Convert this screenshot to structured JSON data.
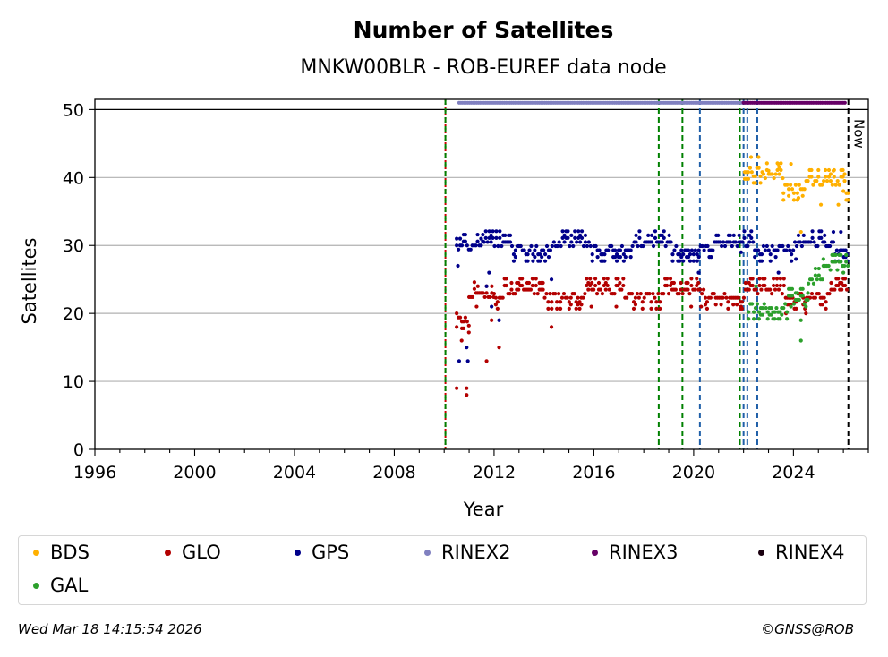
{
  "chart_data": {
    "type": "scatter",
    "title": "Number of Satellites",
    "subtitle": "MNKW00BLR - ROB-EUREF data node",
    "xlabel": "Year",
    "ylabel": "Satellites",
    "xlim": [
      1996,
      2027
    ],
    "ylim": [
      0,
      51.5
    ],
    "x_ticks": [
      "1996",
      "2000",
      "2004",
      "2008",
      "2012",
      "2016",
      "2020",
      "2024"
    ],
    "x_tick_values": [
      1996,
      2000,
      2004,
      2008,
      2012,
      2016,
      2020,
      2024
    ],
    "y_ticks": [
      "0",
      "10",
      "20",
      "30",
      "40",
      "50"
    ],
    "y_tick_values": [
      0,
      10,
      20,
      30,
      40,
      50
    ],
    "grid": "horizontal",
    "now_label": "Now",
    "now_year": 2026.2,
    "vlines": [
      {
        "x": 2010.05,
        "color": "#cc0000",
        "style": "dotted"
      },
      {
        "x": 2010.05,
        "color": "#008000",
        "style": "dashed"
      },
      {
        "x": 2018.6,
        "color": "#008000",
        "style": "dashed"
      },
      {
        "x": 2019.55,
        "color": "#008000",
        "style": "dashed"
      },
      {
        "x": 2020.25,
        "color": "#1f5fa8",
        "style": "dashed"
      },
      {
        "x": 2021.85,
        "color": "#008000",
        "style": "dashed"
      },
      {
        "x": 2022.0,
        "color": "#1f5fa8",
        "style": "dashed"
      },
      {
        "x": 2022.15,
        "color": "#1f5fa8",
        "style": "dashed"
      },
      {
        "x": 2022.55,
        "color": "#1f5fa8",
        "style": "dashed"
      },
      {
        "x": 2026.2,
        "color": "#000000",
        "style": "dashed"
      }
    ],
    "series": [
      {
        "name": "BDS",
        "color": "#ffb000",
        "segments": [
          {
            "x": [
              2022.05,
              2022.8
            ],
            "y": 42
          },
          {
            "x": [
              2022.8,
              2023.6
            ],
            "y": 40.5
          },
          {
            "x": [
              2023.6,
              2026.2
            ],
            "y": 39.5
          }
        ],
        "points": [
          {
            "x": 2022.3,
            "y": 43
          },
          {
            "x": 2022.6,
            "y": 43
          },
          {
            "x": 2023.0,
            "y": 41
          },
          {
            "x": 2023.4,
            "y": 42
          },
          {
            "x": 2023.9,
            "y": 42
          },
          {
            "x": 2024.2,
            "y": 37
          },
          {
            "x": 2024.3,
            "y": 32
          },
          {
            "x": 2025.1,
            "y": 36
          },
          {
            "x": 2025.6,
            "y": 41
          },
          {
            "x": 2025.8,
            "y": 36
          },
          {
            "x": 2026.0,
            "y": 38
          }
        ]
      },
      {
        "name": "GLO",
        "color": "#b30000",
        "segments": [
          {
            "x": [
              2010.5,
              2011.0
            ],
            "y": 20
          },
          {
            "x": [
              2011.0,
              2012.0
            ],
            "y": 23
          },
          {
            "x": [
              2012.0,
              2026.2
            ],
            "y": 23.5
          }
        ],
        "points": [
          {
            "x": 2010.5,
            "y": 9
          },
          {
            "x": 2010.5,
            "y": 18
          },
          {
            "x": 2010.7,
            "y": 16
          },
          {
            "x": 2010.9,
            "y": 8
          },
          {
            "x": 2010.9,
            "y": 9
          },
          {
            "x": 2011.3,
            "y": 21
          },
          {
            "x": 2011.7,
            "y": 13
          },
          {
            "x": 2011.9,
            "y": 19
          },
          {
            "x": 2012.2,
            "y": 15
          },
          {
            "x": 2014.3,
            "y": 18
          },
          {
            "x": 2015.9,
            "y": 21
          },
          {
            "x": 2016.9,
            "y": 21
          },
          {
            "x": 2019.9,
            "y": 21
          },
          {
            "x": 2020.3,
            "y": 21
          },
          {
            "x": 2021.9,
            "y": 21
          },
          {
            "x": 2023.7,
            "y": 20
          },
          {
            "x": 2024.5,
            "y": 20
          }
        ]
      },
      {
        "name": "GPS",
        "color": "#00008b",
        "segments": [
          {
            "x": [
              2010.5,
              2011.6
            ],
            "y": 30
          },
          {
            "x": [
              2011.6,
              2026.2
            ],
            "y": 30.5
          }
        ],
        "points": [
          {
            "x": 2010.55,
            "y": 27
          },
          {
            "x": 2010.6,
            "y": 13
          },
          {
            "x": 2010.9,
            "y": 15
          },
          {
            "x": 2010.95,
            "y": 13
          },
          {
            "x": 2011.7,
            "y": 24
          },
          {
            "x": 2011.8,
            "y": 26
          },
          {
            "x": 2011.9,
            "y": 21
          },
          {
            "x": 2012.2,
            "y": 19
          },
          {
            "x": 2014.3,
            "y": 25
          },
          {
            "x": 2020.2,
            "y": 26
          },
          {
            "x": 2021.9,
            "y": 29
          },
          {
            "x": 2023.4,
            "y": 26
          },
          {
            "x": 2024.1,
            "y": 28
          },
          {
            "x": 2025.6,
            "y": 32
          },
          {
            "x": 2025.9,
            "y": 32
          }
        ]
      },
      {
        "name": "RINEX2",
        "color": "#8080c0",
        "segments": [
          {
            "x": [
              2010.6,
              2022.0
            ],
            "y": 51
          }
        ],
        "points": []
      },
      {
        "name": "RINEX3",
        "color": "#660066",
        "segments": [
          {
            "x": [
              2022.0,
              2026.1
            ],
            "y": 51
          }
        ],
        "points": []
      },
      {
        "name": "RINEX4",
        "color": "#1a0010",
        "segments": [],
        "points": []
      },
      {
        "name": "GAL",
        "color": "#2ca02c",
        "segments": [
          {
            "x": [
              2022.2,
              2024.6
            ],
            "y": 22
          },
          {
            "x": [
              2024.6,
              2025.2
            ],
            "y": 25
          },
          {
            "x": [
              2025.2,
              2026.2
            ],
            "y": 27
          }
        ],
        "points": [
          {
            "x": 2022.5,
            "y": 24
          },
          {
            "x": 2023.9,
            "y": 21
          },
          {
            "x": 2024.3,
            "y": 16
          },
          {
            "x": 2024.3,
            "y": 19
          },
          {
            "x": 2024.5,
            "y": 21
          },
          {
            "x": 2026.0,
            "y": 26
          }
        ]
      }
    ]
  },
  "legend": {
    "items": [
      {
        "label": "BDS",
        "color": "#ffb000"
      },
      {
        "label": "GLO",
        "color": "#b30000"
      },
      {
        "label": "GPS",
        "color": "#00008b"
      },
      {
        "label": "RINEX2",
        "color": "#8080c0"
      },
      {
        "label": "RINEX3",
        "color": "#660066"
      },
      {
        "label": "RINEX4",
        "color": "#1a0010"
      },
      {
        "label": "GAL",
        "color": "#2ca02c"
      }
    ]
  },
  "footer": {
    "timestamp": "Wed Mar 18 14:15:54 2026",
    "credit": "©GNSS@ROB"
  }
}
